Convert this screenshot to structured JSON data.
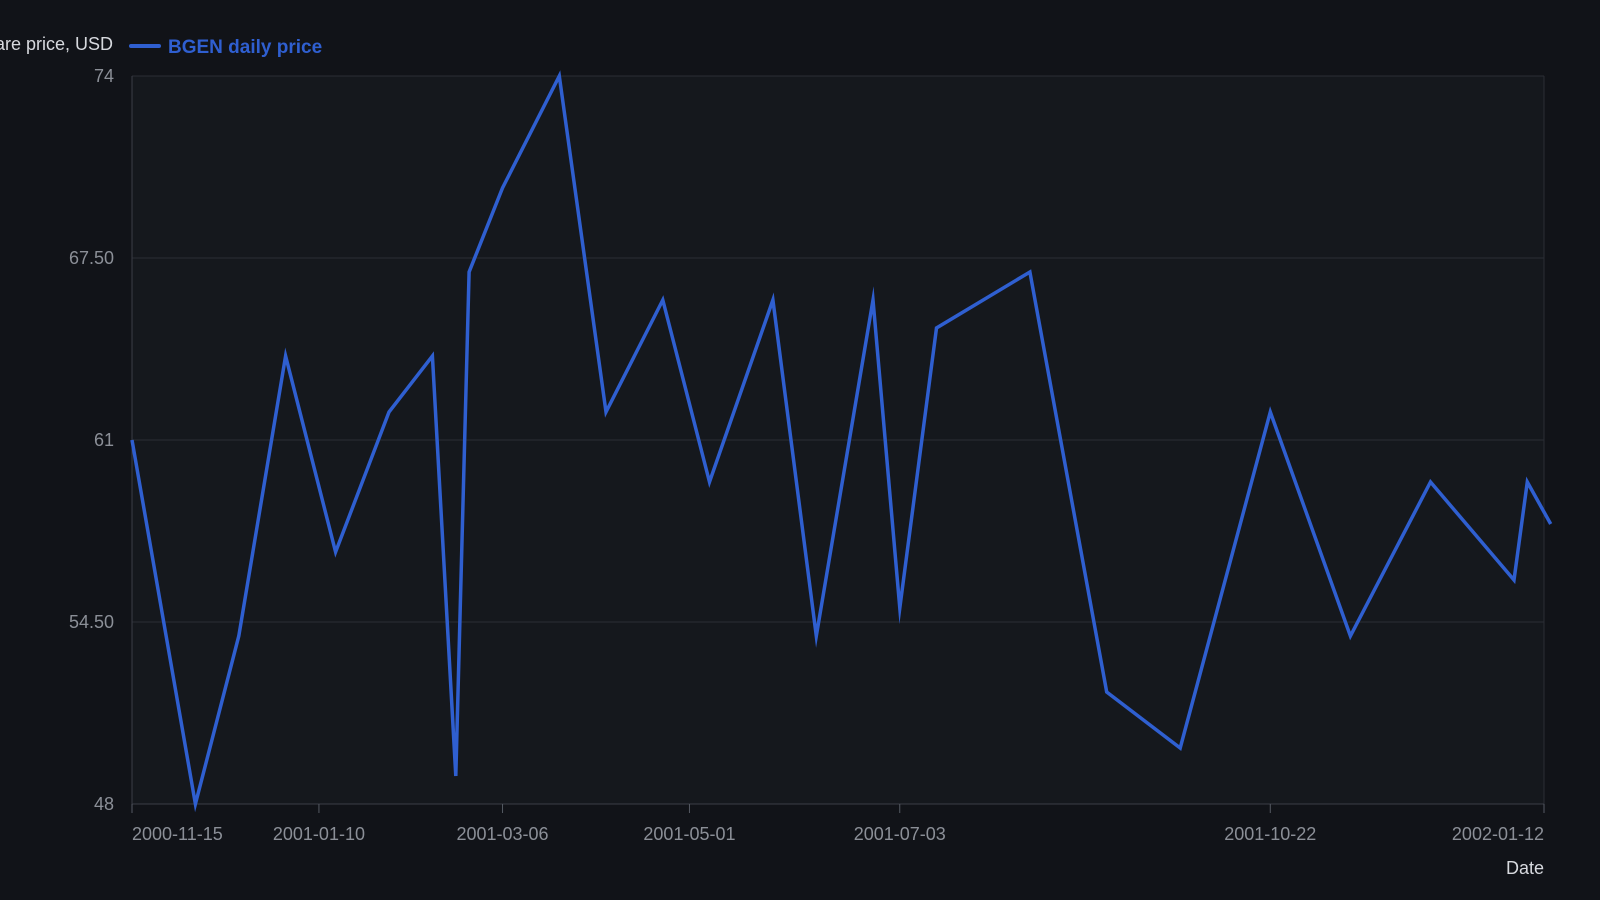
{
  "chart_data": {
    "type": "line",
    "xlabel": "Date",
    "ylabel": "Share price, USD",
    "yticks": [
      48,
      54.5,
      61,
      67.5,
      74
    ],
    "ytick_labels": [
      "48",
      "54.50",
      "61",
      "67.50",
      "74"
    ],
    "ylim": [
      48,
      74
    ],
    "xlim": [
      "2000-11-15",
      "2002-01-12"
    ],
    "xticks": [
      "2000-11-15",
      "2001-01-10",
      "2001-03-06",
      "2001-05-01",
      "2001-07-03",
      "2001-10-22",
      "2002-01-12"
    ],
    "grid": true,
    "legend_position": "top-left",
    "series": [
      {
        "name": "BGEN daily price",
        "color": "#2f5fd0",
        "x": [
          "2000-11-15",
          "2000-12-04",
          "2000-12-17",
          "2000-12-31",
          "2001-01-15",
          "2001-01-31",
          "2001-02-13",
          "2001-02-20",
          "2001-02-24",
          "2001-03-06",
          "2001-03-23",
          "2001-04-06",
          "2001-04-23",
          "2001-05-07",
          "2001-05-26",
          "2001-06-08",
          "2001-06-25",
          "2001-07-03",
          "2001-07-14",
          "2001-08-11",
          "2001-09-03",
          "2001-09-25",
          "2001-10-22",
          "2001-11-15",
          "2001-12-09",
          "2002-01-03",
          "2002-01-07",
          "2002-01-14"
        ],
        "y": [
          61,
          48,
          54,
          64,
          57,
          62,
          64,
          49,
          67,
          70,
          74,
          62,
          66,
          59.5,
          66,
          54,
          66,
          55,
          65,
          67,
          52,
          50,
          62,
          54,
          59.5,
          56,
          59.5,
          58
        ]
      }
    ]
  }
}
